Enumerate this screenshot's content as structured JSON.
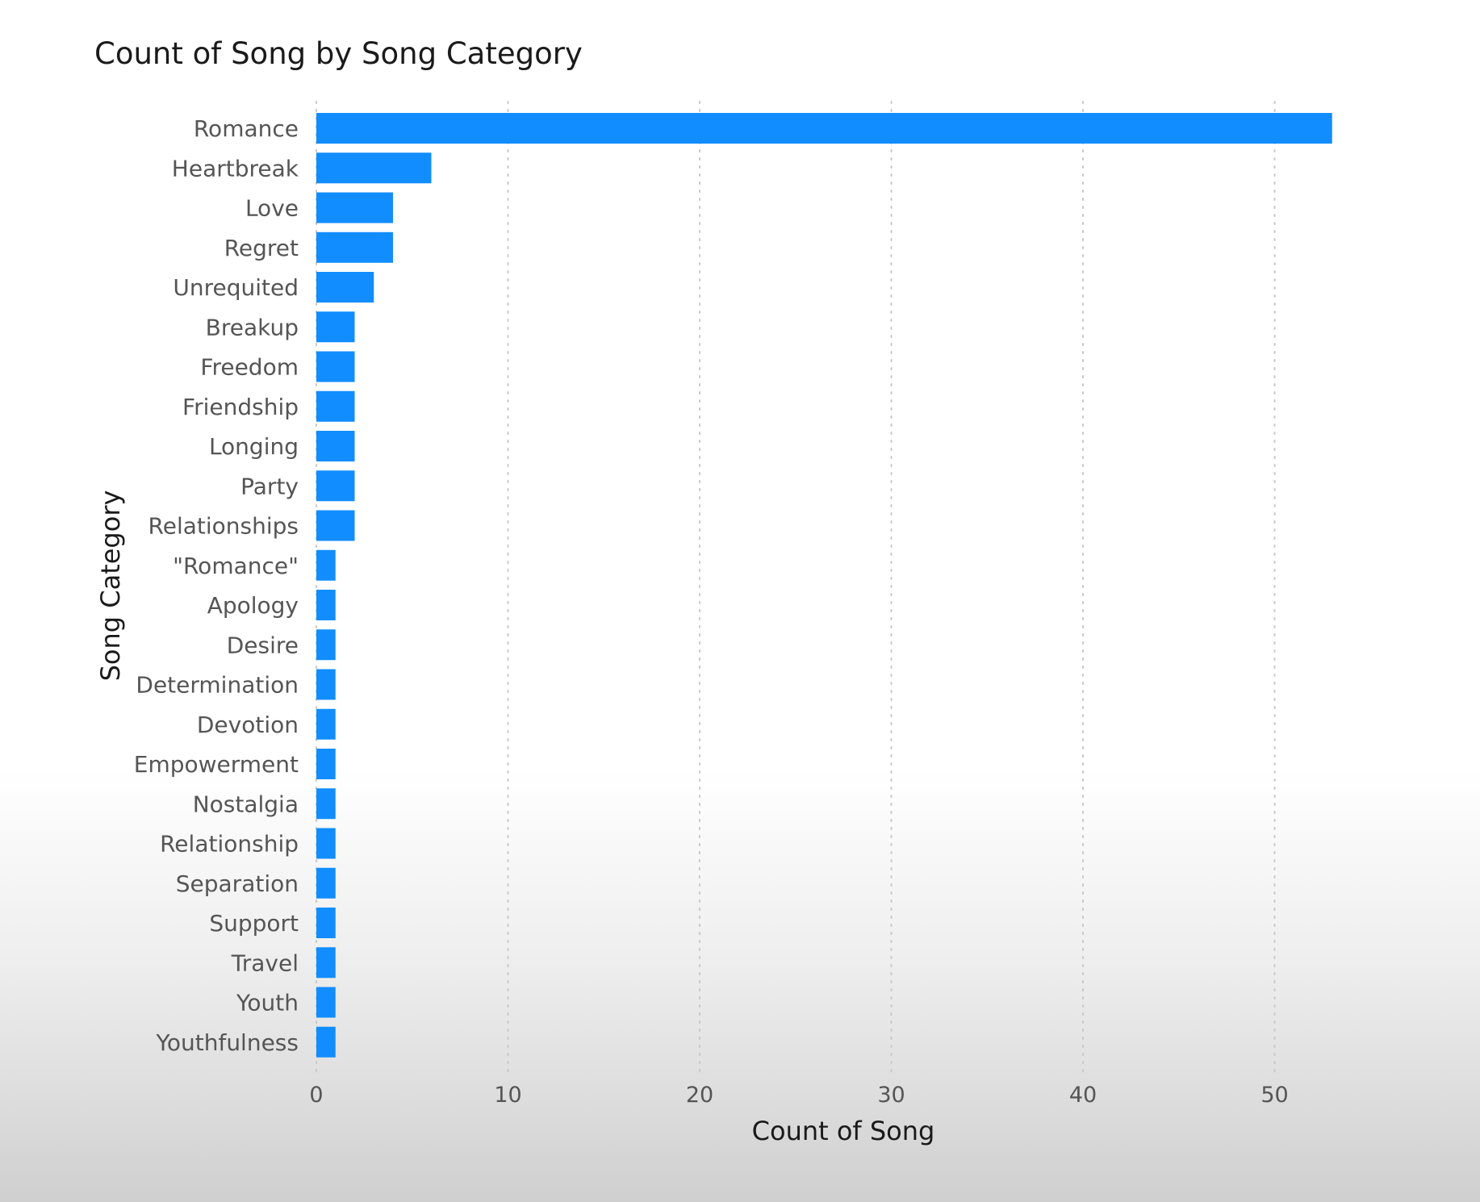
{
  "chart_data": {
    "type": "bar",
    "orientation": "horizontal",
    "title": "Count of Song by Song Category",
    "xlabel": "Count of Song",
    "ylabel": "Song Category",
    "xlim": [
      0,
      55
    ],
    "xticks": [
      "0",
      "10",
      "20",
      "30",
      "40",
      "50"
    ],
    "grid": "vertical dotted",
    "bar_color": "#118DFF",
    "categories": [
      "Romance",
      "Heartbreak",
      "Love",
      "Regret",
      "Unrequited",
      "Breakup",
      "Freedom",
      "Friendship",
      "Longing",
      "Party",
      "Relationships",
      "\"Romance\"",
      "Apology",
      "Desire",
      "Determination",
      "Devotion",
      "Empowerment",
      "Nostalgia",
      "Relationship",
      "Separation",
      "Support",
      "Travel",
      "Youth",
      "Youthfulness"
    ],
    "values": [
      53,
      6,
      4,
      4,
      3,
      2,
      2,
      2,
      2,
      2,
      2,
      1,
      1,
      1,
      1,
      1,
      1,
      1,
      1,
      1,
      1,
      1,
      1,
      1
    ]
  }
}
